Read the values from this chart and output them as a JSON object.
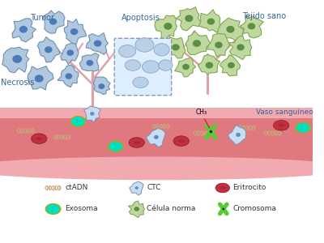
{
  "bg_color": "#ffffff",
  "vessel_color_main": "#e07880",
  "vessel_color_light": "#f0aab0",
  "vessel_color_dark": "#c85060",
  "labels": {
    "tumor": "Tumor",
    "apoptosis": "Apoptosis",
    "necrosis": "Necrosis",
    "tejido_sano": "Tejido sano",
    "vaso": "Vaso sanguíneo",
    "ctadn": "ctADN",
    "ctc": "CTC",
    "eritrocito": "Eritrocito",
    "exosoma": "Exosoma",
    "celula_norma": "Célula norma",
    "cromosoma": "Cromosoma"
  },
  "tumor_cell_color": "#b0c8e0",
  "tumor_cell_border": "#7090b0",
  "nucleus_color": "#4a7ab8",
  "healthy_cell_color": "#c0d8a0",
  "healthy_cell_border": "#7aaa50",
  "healthy_nucleus_color": "#5a9040",
  "exosome_outer": "#00e0c0",
  "exosome_border": "#c8a000",
  "ctc_color": "#c8ddf0",
  "ctc_border": "#8090b0",
  "ctc_nucleus": "#5080c0",
  "erythrocyte_color": "#c03040",
  "erythrocyte_border": "#902030",
  "chromosome_color": "#55cc33",
  "chromosome_center": "#222222",
  "dna_color": "#c8a878",
  "branch_color": "#e0a0a8",
  "label_color": "#336699",
  "text_color": "#333333",
  "ch3_color": "#cc2222"
}
